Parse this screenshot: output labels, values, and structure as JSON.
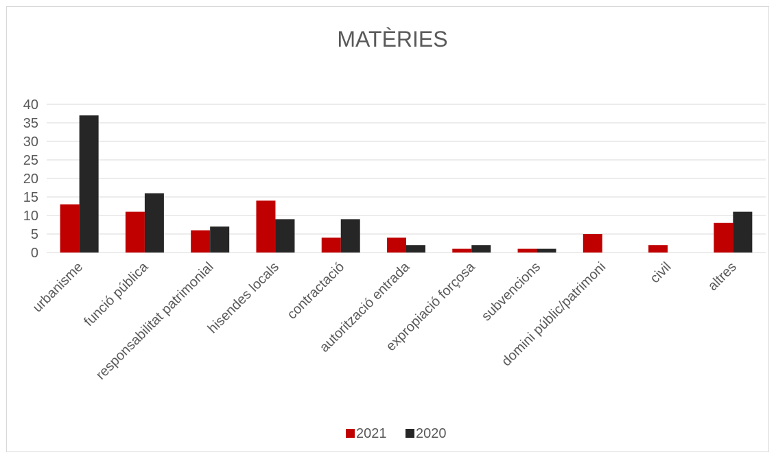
{
  "chart_data": {
    "type": "bar",
    "title": "MATÈRIES",
    "categories": [
      "urbanisme",
      "funció pública",
      "responsabilitat patrimonial",
      "hisendes locals",
      "contractació",
      "autorització entrada",
      "expropiació forçosa",
      "subvencions",
      "domini públic/patrimoni",
      "civil",
      "altres"
    ],
    "series": [
      {
        "name": "2021",
        "color": "#c00000",
        "values": [
          13,
          11,
          6,
          14,
          4,
          4,
          1,
          1,
          5,
          2,
          8
        ]
      },
      {
        "name": "2020",
        "color": "#262626",
        "values": [
          37,
          16,
          7,
          9,
          9,
          2,
          2,
          1,
          0,
          0,
          11
        ]
      }
    ],
    "y_ticks": [
      "0",
      "5",
      "10",
      "15",
      "20",
      "25",
      "30",
      "35",
      "40"
    ],
    "ylim": [
      0,
      40
    ],
    "xlabel": "",
    "ylabel": "",
    "grid": true,
    "legend_position": "bottom"
  }
}
